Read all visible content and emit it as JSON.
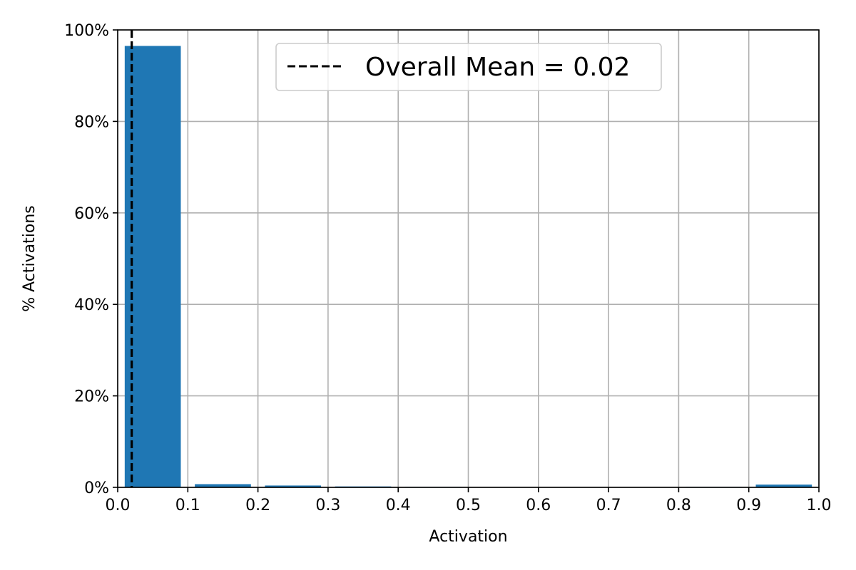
{
  "chart_data": {
    "type": "bar",
    "title": "",
    "xlabel": "Activation",
    "ylabel": "% Activations",
    "xlim": [
      0.0,
      1.0
    ],
    "ylim": [
      0,
      100
    ],
    "grid": true,
    "legend_position": "top-center",
    "bar_color": "#1f77b4",
    "bin_width": 0.1,
    "bins": [
      {
        "start": 0.0,
        "end": 0.1,
        "value": 96.5
      },
      {
        "start": 0.1,
        "end": 0.2,
        "value": 0.7
      },
      {
        "start": 0.2,
        "end": 0.3,
        "value": 0.4
      },
      {
        "start": 0.3,
        "end": 0.4,
        "value": 0.2
      },
      {
        "start": 0.4,
        "end": 0.5,
        "value": 0.1
      },
      {
        "start": 0.5,
        "end": 0.6,
        "value": 0.05
      },
      {
        "start": 0.6,
        "end": 0.7,
        "value": 0.05
      },
      {
        "start": 0.7,
        "end": 0.8,
        "value": 0.05
      },
      {
        "start": 0.8,
        "end": 0.9,
        "value": 0.1
      },
      {
        "start": 0.9,
        "end": 1.0,
        "value": 0.6
      }
    ],
    "x_ticks": [
      {
        "value": 0.0,
        "label": "0.0"
      },
      {
        "value": 0.1,
        "label": "0.1"
      },
      {
        "value": 0.2,
        "label": "0.2"
      },
      {
        "value": 0.3,
        "label": "0.3"
      },
      {
        "value": 0.4,
        "label": "0.4"
      },
      {
        "value": 0.5,
        "label": "0.5"
      },
      {
        "value": 0.6,
        "label": "0.6"
      },
      {
        "value": 0.7,
        "label": "0.7"
      },
      {
        "value": 0.8,
        "label": "0.8"
      },
      {
        "value": 0.9,
        "label": "0.9"
      },
      {
        "value": 1.0,
        "label": "1.0"
      }
    ],
    "y_ticks": [
      {
        "value": 0,
        "label": "0%"
      },
      {
        "value": 20,
        "label": "20%"
      },
      {
        "value": 40,
        "label": "40%"
      },
      {
        "value": 60,
        "label": "60%"
      },
      {
        "value": 80,
        "label": "80%"
      },
      {
        "value": 100,
        "label": "100%"
      }
    ],
    "mean_line": {
      "x": 0.02,
      "label": "Overall Mean = 0.02",
      "color": "#000000",
      "style": "dashed"
    }
  }
}
